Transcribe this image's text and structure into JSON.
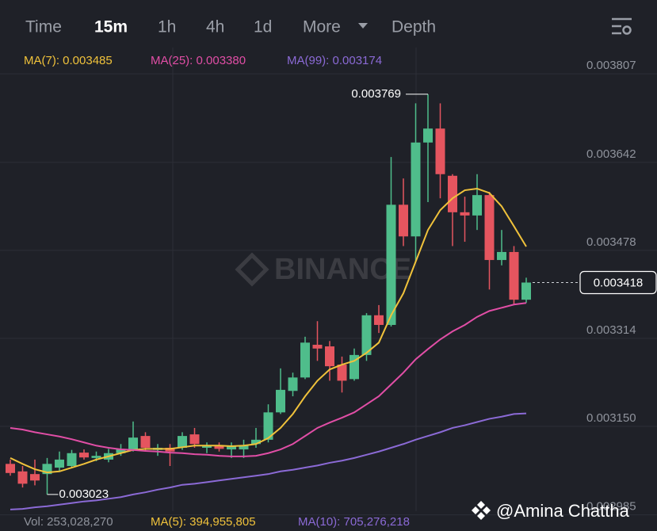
{
  "toolbar": {
    "tabs": [
      "Time",
      "15m",
      "1h",
      "4h",
      "1d",
      "More",
      "Depth"
    ]
  },
  "chart_data": {
    "type": "candlestick",
    "ylim": [
      0.00298,
      0.003856
    ],
    "yticks": [
      0.003807,
      0.003642,
      0.003478,
      0.003314,
      {
        "value": 0.00315,
        "label": "0.003150"
      },
      0.002985
    ],
    "grid": true,
    "up_color": "#4fbd8b",
    "down_color": "#e5555f",
    "candles": {
      "open": [
        0.00308,
        0.003066,
        0.003061,
        0.003061,
        0.003073,
        0.003076,
        0.003101,
        0.003091,
        0.003088,
        0.0031,
        0.003107,
        0.003132,
        0.003106,
        0.00311,
        0.00311,
        0.003135,
        0.00311,
        0.003114,
        0.003107,
        0.003107,
        0.003117,
        0.003125,
        0.003176,
        0.003216,
        0.003241,
        0.003302,
        0.003299,
        0.003265,
        0.003238,
        0.003283,
        0.003357,
        0.003339,
        0.003563,
        0.003504,
        0.003679,
        0.003705,
        0.003617,
        0.003549,
        0.003543,
        0.003581,
        0.00346,
        0.003475,
        0.003386
      ],
      "high": [
        0.003088,
        0.003076,
        0.003088,
        0.003091,
        0.003103,
        0.003106,
        0.003107,
        0.003103,
        0.003108,
        0.003117,
        0.003159,
        0.003139,
        0.003117,
        0.003117,
        0.003139,
        0.003147,
        0.00312,
        0.00312,
        0.00312,
        0.003125,
        0.003147,
        0.003191,
        0.003258,
        0.00325,
        0.003317,
        0.003346,
        0.003309,
        0.00328,
        0.003295,
        0.003361,
        0.003376,
        0.003652,
        0.003612,
        0.003752,
        0.003769,
        0.003752,
        0.00362,
        0.003578,
        0.00362,
        0.003587,
        0.003516,
        0.003486,
        0.003427
      ],
      "low": [
        0.003058,
        0.003036,
        0.00304,
        0.003023,
        0.003066,
        0.003073,
        0.003088,
        0.003085,
        0.003083,
        0.003095,
        0.003103,
        0.003103,
        0.003095,
        0.003076,
        0.003106,
        0.00311,
        0.0031,
        0.003103,
        0.003091,
        0.003091,
        0.00311,
        0.00312,
        0.003173,
        0.003206,
        0.003238,
        0.003272,
        0.003235,
        0.003213,
        0.003235,
        0.003272,
        0.003324,
        0.003336,
        0.003486,
        0.003457,
        0.003568,
        0.003575,
        0.003486,
        0.003494,
        0.003516,
        0.003405,
        0.00345,
        0.003376,
        0.00338
      ],
      "close": [
        0.003063,
        0.003043,
        0.003049,
        0.00308,
        0.003088,
        0.0031,
        0.003092,
        0.003095,
        0.0031,
        0.003108,
        0.003129,
        0.00311,
        0.00311,
        0.003103,
        0.003132,
        0.003117,
        0.003114,
        0.003108,
        0.003113,
        0.003114,
        0.003125,
        0.003176,
        0.003218,
        0.003241,
        0.003306,
        0.003295,
        0.003262,
        0.003235,
        0.003283,
        0.003357,
        0.003339,
        0.003563,
        0.003504,
        0.003679,
        0.003705,
        0.00362,
        0.003549,
        0.003543,
        0.003581,
        0.00346,
        0.003475,
        0.003386,
        0.003418
      ]
    },
    "series": [
      {
        "name": "MA(7): 0.003485",
        "color": "#f0c23b",
        "values": [
          0.003091,
          0.00308,
          0.00307,
          0.003064,
          0.003066,
          0.003073,
          0.00308,
          0.003088,
          0.003094,
          0.0031,
          0.003106,
          0.003108,
          0.003108,
          0.003108,
          0.003111,
          0.003114,
          0.003114,
          0.003114,
          0.003113,
          0.003114,
          0.003117,
          0.003128,
          0.003147,
          0.003173,
          0.003206,
          0.003235,
          0.003256,
          0.003265,
          0.003272,
          0.003287,
          0.003306,
          0.003357,
          0.003398,
          0.003457,
          0.003516,
          0.003553,
          0.003575,
          0.00359,
          0.003593,
          0.003585,
          0.00356,
          0.003523,
          0.003485
        ]
      },
      {
        "name": "MA(25): 0.003380",
        "color": "#e14ea6",
        "values": [
          0.003147,
          0.003144,
          0.003139,
          0.003135,
          0.003131,
          0.003126,
          0.00312,
          0.003114,
          0.00311,
          0.003107,
          0.003106,
          0.003104,
          0.003103,
          0.003101,
          0.0031,
          0.003098,
          0.003097,
          0.003095,
          0.003094,
          0.003094,
          0.003095,
          0.0031,
          0.003107,
          0.003117,
          0.003132,
          0.003147,
          0.003157,
          0.003166,
          0.003176,
          0.003191,
          0.003206,
          0.003228,
          0.00325,
          0.003275,
          0.003294,
          0.003312,
          0.003327,
          0.003339,
          0.003354,
          0.003365,
          0.003371,
          0.003377,
          0.00338
        ]
      },
      {
        "name": "MA(99): 0.003174",
        "color": "#8b6ad6",
        "values": [
          0.002995,
          0.002996,
          0.002999,
          0.003001,
          0.003004,
          0.003007,
          0.00301,
          0.003012,
          0.003015,
          0.003018,
          0.003023,
          0.003027,
          0.003032,
          0.003036,
          0.003041,
          0.003043,
          0.003046,
          0.003049,
          0.003052,
          0.003055,
          0.003058,
          0.003061,
          0.003066,
          0.003069,
          0.003073,
          0.003077,
          0.003082,
          0.003086,
          0.003091,
          0.003097,
          0.003103,
          0.00311,
          0.003117,
          0.003125,
          0.003132,
          0.003139,
          0.003147,
          0.003152,
          0.003158,
          0.003164,
          0.003168,
          0.003173,
          0.003174
        ]
      }
    ],
    "annotations": {
      "high": "0.003769",
      "low": "0.003023",
      "price": "0.003418"
    },
    "watermark": "BINANCE"
  },
  "footer": {
    "vol": "Vol: 253,028,270",
    "ma5": "MA(5): 394,955,805",
    "ma10": "MA(10): 705,276,218",
    "credit": "@Amina Chattha"
  }
}
